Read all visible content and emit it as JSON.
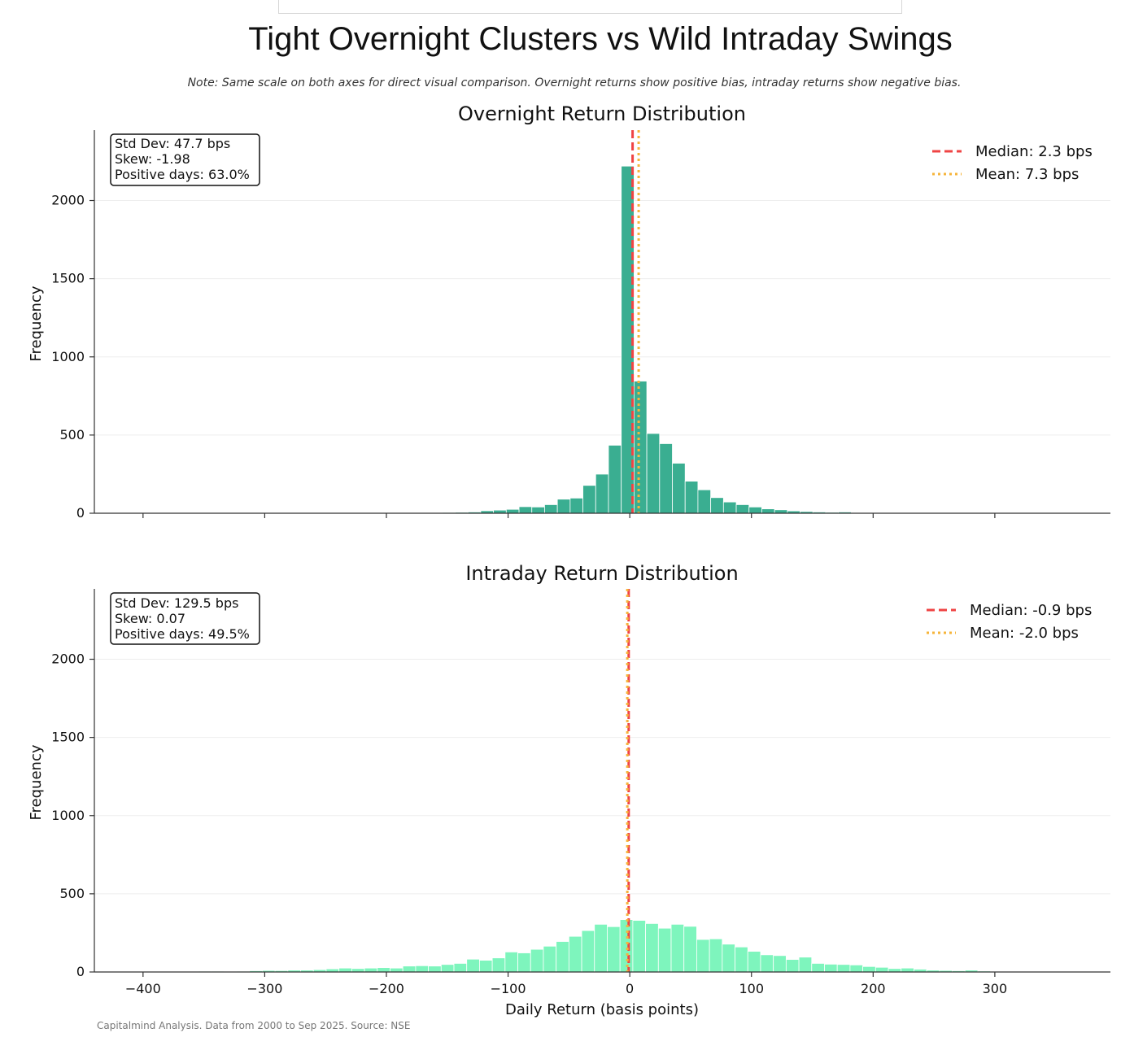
{
  "header": {
    "title": "Tight Overnight Clusters vs Wild Intraday Swings",
    "note": "Note: Same scale on both axes for direct visual comparison. Overnight returns show positive bias, intraday returns show negative bias."
  },
  "footer": {
    "source": "Capitalmind Analysis. Data from 2000 to Sep 2025. Source: NSE"
  },
  "colors": {
    "overnight": "#3aae91",
    "intraday": "#7ef5bd",
    "median": "#ef4444",
    "mean": "#f6b43a",
    "grid": "#eeeeee"
  },
  "chart_data": [
    {
      "type": "histogram",
      "title": "Overnight Return Distribution",
      "xlabel": "",
      "ylabel": "Frequency",
      "xlim": [
        -440,
        395
      ],
      "ylim": [
        0,
        2450
      ],
      "xticks": [
        -400,
        -300,
        -200,
        -100,
        0,
        100,
        200,
        300
      ],
      "xtick_labels_visible": false,
      "yticks": [
        0,
        500,
        1000,
        1500,
        2000
      ],
      "grid": "horizontal",
      "bin_width": 10.5,
      "bins": [
        [
          -175,
          3
        ],
        [
          -164.5,
          4
        ],
        [
          -154,
          5
        ],
        [
          -143.5,
          6
        ],
        [
          -133,
          8
        ],
        [
          -122.5,
          16
        ],
        [
          -112,
          20
        ],
        [
          -101.5,
          25
        ],
        [
          -91,
          42
        ],
        [
          -80.5,
          40
        ],
        [
          -70,
          55
        ],
        [
          -59.5,
          90
        ],
        [
          -49,
          97
        ],
        [
          -38.5,
          178
        ],
        [
          -28,
          250
        ],
        [
          -17.5,
          435
        ],
        [
          -7,
          2220
        ],
        [
          3.5,
          845
        ],
        [
          14,
          510
        ],
        [
          24.5,
          445
        ],
        [
          35,
          320
        ],
        [
          45.5,
          205
        ],
        [
          56,
          150
        ],
        [
          66.5,
          100
        ],
        [
          77,
          72
        ],
        [
          87.5,
          55
        ],
        [
          98,
          40
        ],
        [
          108.5,
          28
        ],
        [
          119,
          22
        ],
        [
          129.5,
          15
        ],
        [
          140,
          11
        ],
        [
          150.5,
          8
        ],
        [
          161,
          6
        ],
        [
          171.5,
          8
        ],
        [
          182,
          3
        ]
      ],
      "median": 2.3,
      "mean": 7.3,
      "stats_box": [
        "Std Dev: 47.7 bps",
        "Skew: -1.98",
        "Positive days: 63.0%"
      ],
      "legend": {
        "position": "top-right",
        "entries": [
          "Median: 2.3 bps",
          "Mean: 7.3 bps"
        ]
      }
    },
    {
      "type": "histogram",
      "title": "Intraday Return Distribution",
      "xlabel": "Daily Return (basis points)",
      "ylabel": "Frequency",
      "xlim": [
        -440,
        395
      ],
      "ylim": [
        0,
        2450
      ],
      "xticks": [
        -400,
        -300,
        -200,
        -100,
        0,
        100,
        200,
        300
      ],
      "xtick_labels": [
        "−400",
        "−300",
        "−200",
        "−100",
        "0",
        "100",
        "200",
        "300"
      ],
      "yticks": [
        0,
        500,
        1000,
        1500,
        2000
      ],
      "grid": "horizontal",
      "bin_width": 10.5,
      "bins": [
        [
          -407,
          3
        ],
        [
          -396.5,
          2
        ],
        [
          -386,
          2
        ],
        [
          -375.5,
          2
        ],
        [
          -365,
          3
        ],
        [
          -354.5,
          5
        ],
        [
          -344,
          5
        ],
        [
          -333.5,
          4
        ],
        [
          -323,
          5
        ],
        [
          -312.5,
          8
        ],
        [
          -302,
          10
        ],
        [
          -291.5,
          9
        ],
        [
          -281,
          12
        ],
        [
          -270.5,
          12
        ],
        [
          -260,
          15
        ],
        [
          -249.5,
          20
        ],
        [
          -239,
          25
        ],
        [
          -228.5,
          22
        ],
        [
          -218,
          25
        ],
        [
          -207.5,
          28
        ],
        [
          -197,
          25
        ],
        [
          -186.5,
          38
        ],
        [
          -176,
          40
        ],
        [
          -165.5,
          38
        ],
        [
          -155,
          48
        ],
        [
          -144.5,
          55
        ],
        [
          -134,
          82
        ],
        [
          -123.5,
          75
        ],
        [
          -113,
          90
        ],
        [
          -102.5,
          128
        ],
        [
          -92,
          122
        ],
        [
          -81.5,
          145
        ],
        [
          -71,
          165
        ],
        [
          -60.5,
          195
        ],
        [
          -50,
          228
        ],
        [
          -39.5,
          265
        ],
        [
          -29,
          305
        ],
        [
          -18.5,
          290
        ],
        [
          -8,
          335
        ],
        [
          2.5,
          330
        ],
        [
          13,
          310
        ],
        [
          23.5,
          280
        ],
        [
          34,
          305
        ],
        [
          44.5,
          292
        ],
        [
          55,
          208
        ],
        [
          65.5,
          212
        ],
        [
          76,
          178
        ],
        [
          86.5,
          160
        ],
        [
          97,
          132
        ],
        [
          107.5,
          110
        ],
        [
          118,
          105
        ],
        [
          128.5,
          80
        ],
        [
          139,
          95
        ],
        [
          149.5,
          55
        ],
        [
          160,
          50
        ],
        [
          170.5,
          48
        ],
        [
          181,
          45
        ],
        [
          191.5,
          35
        ],
        [
          202,
          30
        ],
        [
          212.5,
          22
        ],
        [
          223,
          25
        ],
        [
          233.5,
          18
        ],
        [
          244,
          12
        ],
        [
          254.5,
          10
        ],
        [
          265,
          8
        ],
        [
          275.5,
          12
        ],
        [
          286,
          6
        ],
        [
          296.5,
          4
        ],
        [
          307,
          3
        ],
        [
          317.5,
          2
        ]
      ],
      "median": -0.9,
      "mean": -2.0,
      "stats_box": [
        "Std Dev: 129.5 bps",
        "Skew: 0.07",
        "Positive days: 49.5%"
      ],
      "legend": {
        "position": "top-right",
        "entries": [
          "Median: -0.9 bps",
          "Mean: -2.0 bps"
        ]
      }
    }
  ]
}
